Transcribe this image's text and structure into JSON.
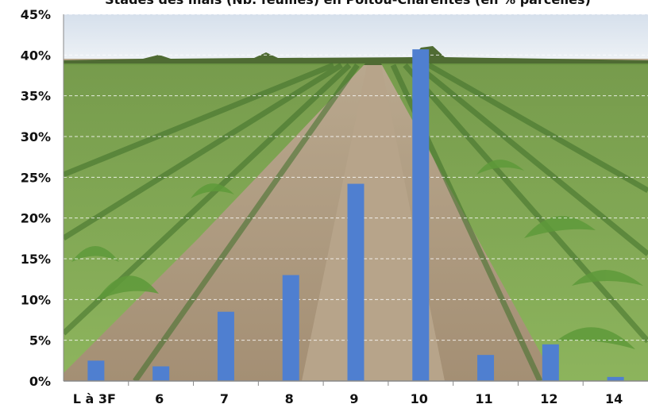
{
  "chart_data": {
    "type": "bar",
    "title": "Stades des maïs (Nb. feuilles) en Poitou-Charentes (en % parcelles)",
    "categories": [
      "L à 3F",
      "6",
      "7",
      "8",
      "9",
      "10",
      "11",
      "12",
      "14"
    ],
    "values": [
      2.5,
      1.8,
      8.5,
      13.0,
      24.2,
      40.7,
      3.2,
      4.5,
      0.5
    ],
    "y_unit": "%",
    "ylim": [
      0,
      45
    ],
    "y_ticks": [
      "0%",
      "5%",
      "10%",
      "15%",
      "20%",
      "25%",
      "30%",
      "35%",
      "40%",
      "45%"
    ],
    "grid": true,
    "bar_color": "#4f7fd0",
    "background": "photo of young maize field (rows of plants, soil path, sky)"
  }
}
